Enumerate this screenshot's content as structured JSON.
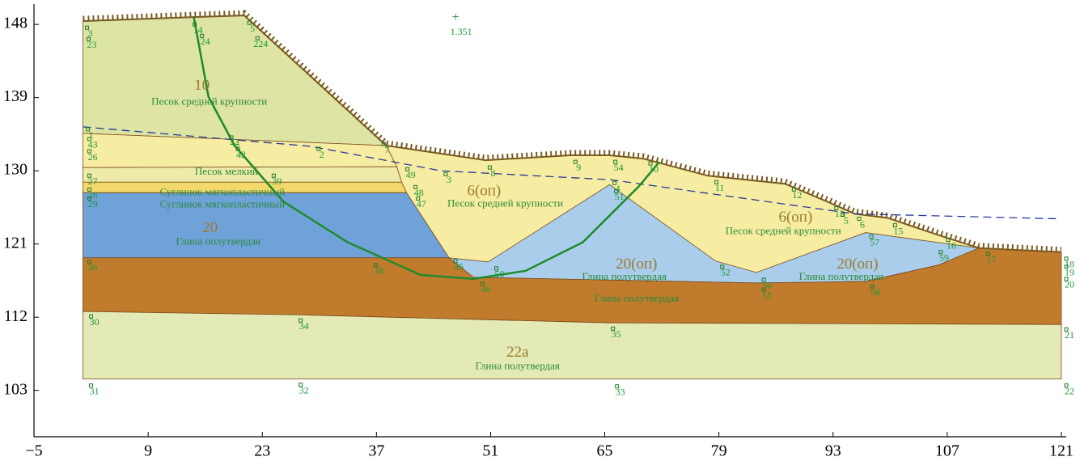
{
  "chart_data": {
    "type": "section",
    "xlim": [
      -5,
      121.6
    ],
    "ylim": [
      97.3,
      150.5
    ],
    "xticks": [
      {
        "value": -5,
        "label": "−5"
      },
      9,
      23,
      37,
      51,
      65,
      79,
      93,
      107,
      121
    ],
    "yticks": [
      103,
      112,
      121,
      130,
      139,
      148
    ],
    "polygons": [
      {
        "color": "#dde4a4",
        "points": [
          [
            1,
            148.4
          ],
          [
            14.6,
            148.9
          ],
          [
            20.8,
            149.1
          ],
          [
            38.2,
            133.1
          ],
          [
            1,
            134.6
          ]
        ]
      },
      {
        "color": "#f6eca2",
        "points": [
          [
            1,
            134.6
          ],
          [
            38.2,
            133.1
          ],
          [
            39.5,
            130.5
          ],
          [
            1,
            130.4
          ]
        ]
      },
      {
        "color": "#eeeaa8",
        "points": [
          [
            1,
            130.4
          ],
          [
            39.5,
            130.5
          ],
          [
            40.1,
            128.6
          ],
          [
            1,
            128.6
          ]
        ]
      },
      {
        "color": "#f3d96b",
        "points": [
          [
            1,
            128.6
          ],
          [
            40.1,
            128.6
          ],
          [
            40.7,
            127.3
          ],
          [
            1,
            127.3
          ]
        ]
      },
      {
        "color": "#6fa2d9",
        "points": [
          [
            1,
            127.3
          ],
          [
            40.7,
            127.3
          ],
          [
            45.9,
            119.3
          ],
          [
            1,
            119.3
          ]
        ]
      },
      {
        "color": "#f6eca2",
        "points": [
          [
            38.2,
            133.1
          ],
          [
            50.4,
            131.3
          ],
          [
            60.8,
            131.9
          ],
          [
            65.6,
            131.9
          ],
          [
            69.7,
            131.5
          ],
          [
            77.6,
            129.4
          ],
          [
            87.1,
            128.4
          ],
          [
            92.3,
            126.2
          ],
          [
            95.7,
            124.7
          ],
          [
            99.7,
            124.2
          ],
          [
            105.9,
            122.1
          ],
          [
            110.9,
            120.5
          ],
          [
            105.9,
            118.4
          ],
          [
            97,
            116.4
          ],
          [
            83.6,
            116.2
          ],
          [
            48.9,
            116.9
          ],
          [
            45.9,
            119.3
          ],
          [
            40.7,
            127.3
          ],
          [
            40.1,
            128.6
          ],
          [
            39.5,
            130.5
          ]
        ]
      },
      {
        "color": "#a9cdea",
        "points": [
          [
            45.9,
            119.3
          ],
          [
            50.7,
            118.8
          ],
          [
            65.6,
            128.3
          ],
          [
            78.6,
            118.9
          ],
          [
            83.6,
            117.5
          ],
          [
            97,
            122.4
          ],
          [
            110.9,
            120.5
          ],
          [
            105.9,
            118.4
          ],
          [
            97,
            116.4
          ],
          [
            83.6,
            116.2
          ],
          [
            48.9,
            116.9
          ]
        ]
      },
      {
        "color": "#c17b2c",
        "points": [
          [
            1,
            119.3
          ],
          [
            45.9,
            119.3
          ],
          [
            48.9,
            116.9
          ],
          [
            83.6,
            116.2
          ],
          [
            97,
            116.4
          ],
          [
            105.9,
            118.4
          ],
          [
            110.9,
            120.5
          ],
          [
            121,
            120
          ],
          [
            121,
            111.1
          ],
          [
            65.6,
            111.3
          ],
          [
            26.8,
            112.3
          ],
          [
            1,
            112.7
          ]
        ]
      },
      {
        "color": "#e3eab5",
        "points": [
          [
            1,
            112.7
          ],
          [
            26.8,
            112.3
          ],
          [
            65.6,
            111.3
          ],
          [
            121,
            111.1
          ],
          [
            121,
            104.4
          ],
          [
            1,
            104.4
          ]
        ]
      }
    ],
    "surface": {
      "color": "#7a5a1e",
      "points": [
        [
          1,
          148.4
        ],
        [
          14.6,
          148.9
        ],
        [
          20.8,
          149.1
        ],
        [
          38.2,
          133.1
        ],
        [
          50.4,
          131.3
        ],
        [
          60.8,
          131.9
        ],
        [
          65.6,
          131.9
        ],
        [
          69.7,
          131.5
        ],
        [
          77.6,
          129.4
        ],
        [
          87.1,
          128.4
        ],
        [
          92.3,
          126.2
        ],
        [
          95.7,
          124.7
        ],
        [
          99.7,
          124.2
        ],
        [
          105.9,
          122.1
        ],
        [
          110.9,
          120.5
        ],
        [
          121,
          120
        ]
      ]
    },
    "slip_surface": {
      "color": "#1f8a2a",
      "points": [
        [
          14.6,
          148.9
        ],
        [
          16.4,
          139.1
        ],
        [
          19.6,
          133.1
        ],
        [
          25.6,
          126.2
        ],
        [
          33.5,
          121.2
        ],
        [
          42.4,
          117.2
        ],
        [
          48.9,
          116.7
        ],
        [
          55.3,
          117.7
        ],
        [
          62.3,
          121.2
        ],
        [
          69.2,
          128.1
        ],
        [
          71.7,
          131.1
        ]
      ]
    },
    "water_table": {
      "color": "#2a3a9a",
      "points": [
        [
          1,
          135.4
        ],
        [
          29,
          133
        ],
        [
          44.9,
          130
        ],
        [
          65.7,
          128.9
        ],
        [
          95.7,
          124.7
        ],
        [
          120.6,
          124.1
        ]
      ]
    },
    "slip_center": {
      "x": 46.7,
      "y": 148.8,
      "factor_x": 47.4,
      "factor_y": 147.0,
      "factor": 1.351
    },
    "nodes": [
      {
        "label": 3,
        "x": 1.9,
        "y": 146.8
      },
      {
        "label": 23,
        "x": 2.1,
        "y": 145.4
      },
      {
        "label": 14,
        "x": 15.1,
        "y": 147.2
      },
      {
        "label": 24,
        "x": 16.0,
        "y": 145.8
      },
      {
        "label": 5,
        "x": 21.8,
        "y": 147.4
      },
      {
        "label": 224,
        "x": 22.8,
        "y": 145.5
      },
      {
        "label": 1,
        "x": 2.0,
        "y": 134.3
      },
      {
        "label": 43,
        "x": 2.2,
        "y": 133.1
      },
      {
        "label": 26,
        "x": 2.2,
        "y": 131.6
      },
      {
        "label": 44,
        "x": 19.6,
        "y": 133.3
      },
      {
        "label": 42,
        "x": 20.4,
        "y": 131.9
      },
      {
        "label": 2,
        "x": 30.3,
        "y": 131.9
      },
      {
        "label": 39,
        "x": 24.8,
        "y": 128.6
      },
      {
        "label": 27,
        "x": 2.2,
        "y": 128.6
      },
      {
        "label": 28,
        "x": 2.2,
        "y": 126.9
      },
      {
        "label": 29,
        "x": 2.2,
        "y": 125.8
      },
      {
        "label": 7,
        "x": 38.3,
        "y": 132.5
      },
      {
        "label": 49,
        "x": 41.2,
        "y": 129.4
      },
      {
        "label": 48,
        "x": 42.2,
        "y": 127.2
      },
      {
        "label": 47,
        "x": 42.5,
        "y": 125.8
      },
      {
        "label": 3,
        "x": 45.9,
        "y": 128.8
      },
      {
        "label": 8,
        "x": 51.3,
        "y": 129.6
      },
      {
        "label": 9,
        "x": 61.8,
        "y": 130.3
      },
      {
        "label": 54,
        "x": 66.7,
        "y": 130.3
      },
      {
        "label": 4,
        "x": 66.6,
        "y": 127.7
      },
      {
        "label": 51,
        "x": 66.8,
        "y": 126.7
      },
      {
        "label": 10,
        "x": 71.0,
        "y": 130.1
      },
      {
        "label": 11,
        "x": 79.1,
        "y": 127.8
      },
      {
        "label": 12,
        "x": 88.6,
        "y": 126.9
      },
      {
        "label": 13,
        "x": 93.8,
        "y": 124.6
      },
      {
        "label": 5,
        "x": 94.6,
        "y": 123.8
      },
      {
        "label": 6,
        "x": 96.6,
        "y": 123.3
      },
      {
        "label": 57,
        "x": 98.1,
        "y": 121.1
      },
      {
        "label": 15,
        "x": 101.0,
        "y": 122.5
      },
      {
        "label": 16,
        "x": 107.5,
        "y": 120.7
      },
      {
        "label": 59,
        "x": 106.6,
        "y": 119.2
      },
      {
        "label": 17,
        "x": 112.4,
        "y": 119.0
      },
      {
        "label": 18,
        "x": 122.0,
        "y": 118.4
      },
      {
        "label": 19,
        "x": 122.0,
        "y": 117.4
      },
      {
        "label": 20,
        "x": 122.0,
        "y": 115.9
      },
      {
        "label": 36,
        "x": 2.2,
        "y": 118.0
      },
      {
        "label": 38,
        "x": 37.3,
        "y": 117.6
      },
      {
        "label": 45,
        "x": 47.1,
        "y": 118.1
      },
      {
        "label": 50,
        "x": 52.1,
        "y": 117.2
      },
      {
        "label": 46,
        "x": 50.4,
        "y": 115.3
      },
      {
        "label": 52,
        "x": 79.8,
        "y": 117.4
      },
      {
        "label": 56,
        "x": 84.9,
        "y": 115.8
      },
      {
        "label": 55,
        "x": 84.9,
        "y": 114.6
      },
      {
        "label": 58,
        "x": 98.2,
        "y": 115.0
      },
      {
        "label": 30,
        "x": 2.4,
        "y": 111.3
      },
      {
        "label": 34,
        "x": 28.1,
        "y": 110.8
      },
      {
        "label": 35,
        "x": 66.4,
        "y": 109.8
      },
      {
        "label": 21,
        "x": 122.0,
        "y": 109.7
      },
      {
        "label": 31,
        "x": 2.4,
        "y": 102.8
      },
      {
        "label": 32,
        "x": 28.1,
        "y": 102.9
      },
      {
        "label": 33,
        "x": 66.9,
        "y": 102.7
      },
      {
        "label": 22,
        "x": 122.0,
        "y": 102.8
      }
    ],
    "layer_codes": [
      {
        "text": "10",
        "x": 15.6,
        "y": 140.4
      },
      {
        "text": "20",
        "x": 16.6,
        "y": 122.9
      },
      {
        "text": "6(оп)",
        "x": 50.2,
        "y": 127.4
      },
      {
        "text": "6(оп)",
        "x": 88.4,
        "y": 124.2
      },
      {
        "text": "20(оп)",
        "x": 68.9,
        "y": 118.4
      },
      {
        "text": "20(оп)",
        "x": 96.0,
        "y": 118.4
      },
      {
        "text": "22а",
        "x": 54.3,
        "y": 107.6
      }
    ],
    "layer_names": [
      {
        "text": "Песок средней крупности",
        "x": 16.5,
        "y": 138.4
      },
      {
        "text": "Песок мелкий",
        "x": 18.6,
        "y": 129.8
      },
      {
        "text": "Суглинок мягкопластичный",
        "x": 18.1,
        "y": 127.3
      },
      {
        "text": "Суглинок мягкопластичный",
        "x": 18.1,
        "y": 125.8
      },
      {
        "text": "Глина полутвердая",
        "x": 17.6,
        "y": 121.2
      },
      {
        "text": "Песок средней крупности",
        "x": 52.8,
        "y": 125.9
      },
      {
        "text": "Песок средней крупности",
        "x": 86.9,
        "y": 122.5
      },
      {
        "text": "Глина полутвердая",
        "x": 67.4,
        "y": 116.9
      },
      {
        "text": "Глина полутвердая",
        "x": 94.0,
        "y": 116.9
      },
      {
        "text": "Глина полутвердая",
        "x": 68.9,
        "y": 114.2
      },
      {
        "text": "Глина полутвердая",
        "x": 54.3,
        "y": 105.9
      }
    ]
  }
}
